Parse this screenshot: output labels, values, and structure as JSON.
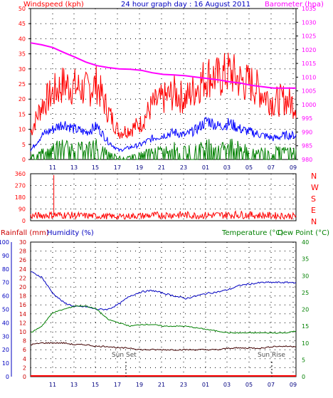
{
  "chart_data": [
    {
      "type": "line",
      "title": "24 hour graph day : 16 August 2011",
      "left_axis_label": "Windspeed (kph)",
      "right_axis_label": "Barometer (hpa)",
      "x_ticks": [
        "11",
        "13",
        "15",
        "17",
        "19",
        "21",
        "23",
        "01",
        "03",
        "05",
        "07",
        "09"
      ],
      "left_ticks": [
        "0",
        "5",
        "10",
        "15",
        "20",
        "25",
        "30",
        "35",
        "40",
        "45",
        "50"
      ],
      "right_ticks": [
        "980",
        "985",
        "990",
        "995",
        "1000",
        "1005",
        "1010",
        "1015",
        "1020",
        "1025",
        "1030",
        "1035"
      ],
      "ylim_left": [
        0,
        50
      ],
      "ylim_right": [
        980,
        1035
      ],
      "grid": true,
      "colors": {
        "gust": "#ff0000",
        "average": "#0000ff",
        "lowest": "#008000",
        "barometer": "#ff00ff"
      },
      "series": [
        {
          "name": "barometer",
          "axis": "right",
          "x": [
            0,
            1,
            2,
            3,
            4,
            5,
            6,
            7,
            8,
            9,
            10,
            11,
            12,
            13,
            14,
            15,
            16,
            17,
            18,
            19,
            20,
            21,
            22,
            23,
            24
          ],
          "values": [
            1022.5,
            1021.8,
            1020.8,
            1019,
            1017.3,
            1015.5,
            1014.2,
            1013.5,
            1013,
            1012.9,
            1012.5,
            1011.6,
            1011,
            1010.8,
            1010.5,
            1010,
            1009.5,
            1009,
            1008.3,
            1007.8,
            1007,
            1006.5,
            1006,
            1006,
            1006
          ]
        },
        {
          "name": "gust",
          "axis": "left",
          "x": [
            0,
            1,
            2,
            3,
            4,
            5,
            6,
            7,
            8,
            9,
            10,
            11,
            12,
            13,
            14,
            15,
            16,
            17,
            18,
            19,
            20,
            21,
            22,
            23,
            24
          ],
          "values": [
            9,
            18,
            22,
            25,
            24,
            23,
            25,
            16,
            9,
            10,
            12,
            18,
            20,
            22,
            20,
            24,
            28,
            27,
            29,
            26,
            25,
            22,
            19,
            20,
            18
          ]
        },
        {
          "name": "average",
          "axis": "left",
          "x": [
            0,
            1,
            2,
            3,
            4,
            5,
            6,
            7,
            8,
            9,
            10,
            11,
            12,
            13,
            14,
            15,
            16,
            17,
            18,
            19,
            20,
            21,
            22,
            23,
            24
          ],
          "values": [
            3,
            8,
            10,
            12,
            10,
            9,
            11,
            6,
            3,
            4,
            5,
            7,
            8,
            9,
            8,
            10,
            13,
            11,
            12,
            10,
            9,
            8,
            7,
            8,
            8
          ]
        },
        {
          "name": "lowest",
          "axis": "left",
          "x": [
            0,
            1,
            2,
            3,
            4,
            5,
            6,
            7,
            8,
            9,
            10,
            11,
            12,
            13,
            14,
            15,
            16,
            17,
            18,
            19,
            20,
            21,
            22,
            23,
            24
          ],
          "values": [
            1,
            3,
            4,
            5,
            4,
            4,
            5,
            2,
            1,
            1,
            2,
            3,
            3,
            4,
            3,
            4,
            5,
            4,
            5,
            4,
            3,
            3,
            3,
            3,
            3
          ]
        }
      ]
    },
    {
      "type": "scatter",
      "right_axis_label": "N W S E N",
      "direction_labels": [
        "N",
        "W",
        "S",
        "E",
        "N"
      ],
      "left_ticks": [
        "0",
        "90",
        "180",
        "270",
        "360"
      ],
      "ylim": [
        0,
        360
      ],
      "grid": true,
      "colors": {
        "direction": "#ff0000"
      },
      "series": [
        {
          "name": "direction",
          "x": [
            0,
            1,
            2,
            3,
            4,
            5,
            6,
            7,
            8,
            9,
            10,
            11,
            12,
            13,
            14,
            15,
            16,
            17,
            18,
            19,
            20,
            21,
            22,
            23,
            24
          ],
          "values": [
            40,
            45,
            50,
            48,
            45,
            42,
            40,
            38,
            35,
            40,
            42,
            45,
            48,
            50,
            48,
            45,
            46,
            48,
            50,
            52,
            48,
            45,
            44,
            42,
            40
          ]
        }
      ]
    },
    {
      "type": "line",
      "left_axis_label": "Rainfall (mm)",
      "left2_axis_label": "Humidity (%)",
      "right_axis_label": "Temperature (°C)",
      "right2_axis_label": "Dew Point (°C)",
      "x_ticks": [
        "11",
        "13",
        "15",
        "17",
        "19",
        "21",
        "23",
        "01",
        "03",
        "05",
        "07",
        "09"
      ],
      "humidity_ticks": [
        "0",
        "10",
        "20",
        "30",
        "40",
        "50",
        "60",
        "70",
        "80",
        "90",
        "100"
      ],
      "rain_ticks": [
        "0",
        "2",
        "4",
        "6",
        "8",
        "10",
        "12",
        "14",
        "16",
        "18",
        "20",
        "22",
        "24",
        "26",
        "28",
        "30"
      ],
      "temp_ticks": [
        "0",
        "5",
        "10",
        "15",
        "20",
        "25",
        "30",
        "35",
        "40"
      ],
      "ylim_humidity": [
        0,
        100
      ],
      "ylim_rain": [
        0,
        30
      ],
      "ylim_temp": [
        0,
        40
      ],
      "grid": true,
      "annotations": [
        "Sun Set",
        "Sun Rise"
      ],
      "colors": {
        "humidity": "#0000c0",
        "temperature": "#008000",
        "dewpoint": "#400000",
        "rainfall": "#ff0000"
      },
      "series": [
        {
          "name": "humidity",
          "axis": "humidity",
          "x": [
            0,
            1,
            2,
            3,
            4,
            5,
            6,
            7,
            8,
            9,
            10,
            11,
            12,
            13,
            14,
            15,
            16,
            17,
            18,
            19,
            20,
            21,
            22,
            23,
            24
          ],
          "values": [
            78,
            74,
            62,
            55,
            52,
            52,
            50,
            50,
            54,
            60,
            63,
            64,
            62,
            60,
            58,
            60,
            62,
            63,
            65,
            68,
            69,
            70,
            70,
            70,
            70
          ]
        },
        {
          "name": "temperature",
          "axis": "temp",
          "x": [
            0,
            1,
            2,
            3,
            4,
            5,
            6,
            7,
            8,
            9,
            10,
            11,
            12,
            13,
            14,
            15,
            16,
            17,
            18,
            19,
            20,
            21,
            22,
            23,
            24
          ],
          "values": [
            13,
            15,
            19,
            20,
            21,
            21,
            20,
            17,
            16,
            15,
            15.5,
            15.5,
            15,
            15,
            15,
            14.5,
            14,
            13.5,
            13,
            13,
            13,
            13,
            13,
            13,
            13.5
          ]
        },
        {
          "name": "dewpoint",
          "axis": "temp",
          "x": [
            0,
            1,
            2,
            3,
            4,
            5,
            6,
            7,
            8,
            9,
            10,
            11,
            12,
            13,
            14,
            15,
            16,
            17,
            18,
            19,
            20,
            21,
            22,
            23,
            24
          ],
          "values": [
            9.5,
            10,
            10,
            10,
            9.5,
            9.5,
            9,
            9,
            8.5,
            8.5,
            8,
            8,
            8,
            8,
            8,
            8,
            8,
            8,
            8.5,
            8.5,
            8.5,
            8.5,
            9,
            9,
            9
          ]
        },
        {
          "name": "rainfall",
          "axis": "rain",
          "x": [
            0,
            24
          ],
          "values": [
            0,
            0
          ]
        }
      ]
    }
  ]
}
